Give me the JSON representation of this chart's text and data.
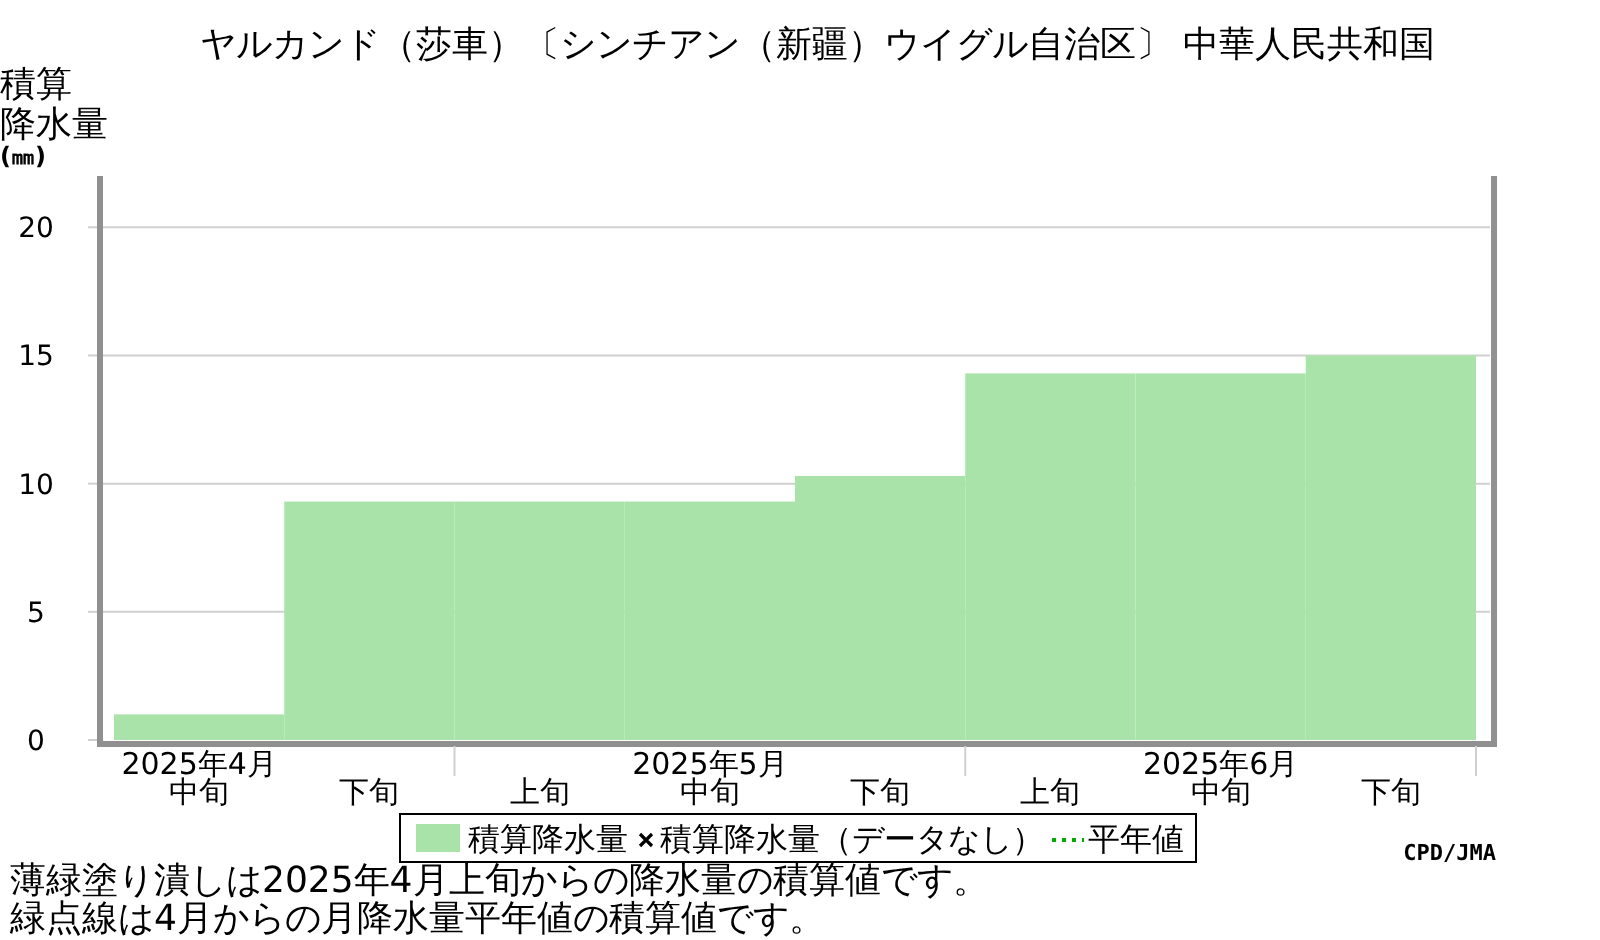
{
  "chart_data": {
    "type": "bar",
    "title": "ヤルカンド（莎車）〔シンチアン（新疆）ウイグル自治区〕 中華人民共和国",
    "ylabel": "積算降水量(㎜)",
    "categories": [
      "2025年4月中旬",
      "下旬",
      "上旬",
      "2025年5月中旬",
      "下旬",
      "上旬",
      "2025年6月中旬",
      "下旬"
    ],
    "series": [
      {
        "name": "積算降水量",
        "color": "#aae3aa",
        "values": [
          1.0,
          9.3,
          9.3,
          9.3,
          10.3,
          14.3,
          14.3,
          15.0
        ]
      },
      {
        "name": "積算降水量（データなし）",
        "type": "scatter",
        "marker": "cross",
        "color": "#000000",
        "values": [
          null,
          null,
          null,
          null,
          null,
          null,
          null,
          null
        ]
      },
      {
        "name": "平年値",
        "type": "line",
        "line_style": "dotted",
        "color": "#00aa00",
        "values": [
          null,
          null,
          null,
          null,
          null,
          null,
          null,
          null
        ]
      }
    ],
    "ylim": [
      0,
      22
    ],
    "yticks": [
      0,
      5,
      10,
      15,
      20
    ],
    "grid": "y",
    "legend": "bottom",
    "annotations": [
      "CPD/JMA",
      "薄緑塗り潰しは2025年4月上旬からの降水量の積算値です。",
      "緑点線は4月からの月降水量平年値の積算値です。"
    ]
  }
}
